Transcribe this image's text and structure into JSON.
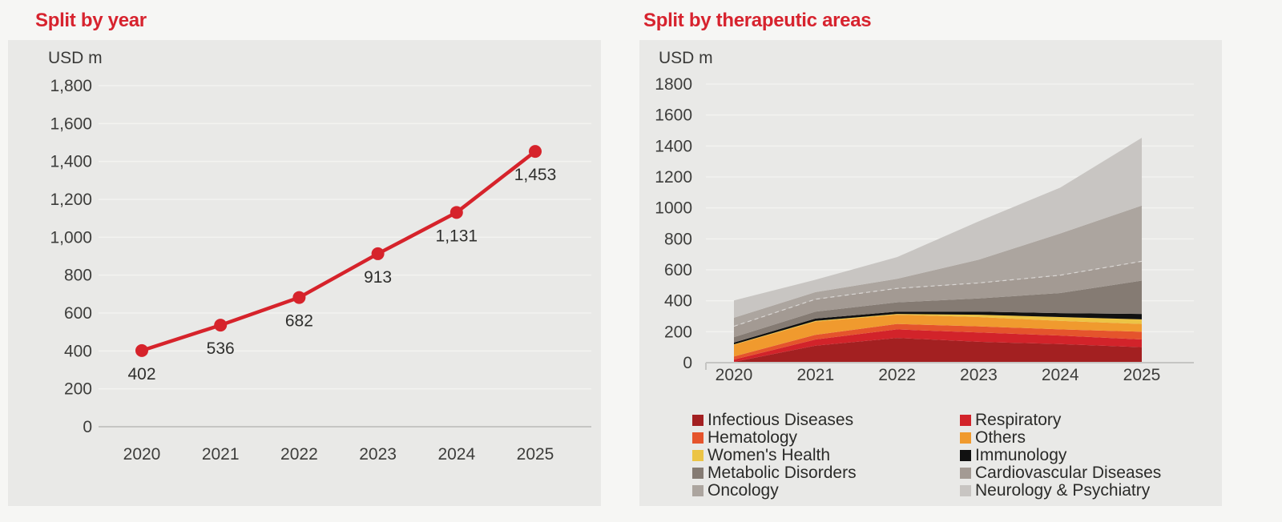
{
  "page": {
    "background": "#f6f6f4",
    "panel_background": "#e9e9e7",
    "accent_red": "#d7232e",
    "axis_text_color": "#3d3d3b",
    "gridline_color": "#f3f3f1",
    "zero_axis_color": "#c5c5c3"
  },
  "chart_data": [
    {
      "type": "line",
      "title": "Split by year",
      "unit": "USD m",
      "categories": [
        "2020",
        "2021",
        "2022",
        "2023",
        "2024",
        "2025"
      ],
      "values": [
        402,
        536,
        682,
        913,
        1131,
        1453
      ],
      "data_labels": [
        "402",
        "536",
        "682",
        "913",
        "1,131",
        "1,453"
      ],
      "ylim": [
        0,
        1800
      ],
      "ytick_step": 200,
      "ytick_labels": [
        "0",
        "200",
        "400",
        "600",
        "800",
        "1,000",
        "1,200",
        "1,400",
        "1,600",
        "1,800"
      ],
      "line_color": "#d6232b",
      "marker_color": "#d6232b",
      "grid": true,
      "legend_position": "none"
    },
    {
      "type": "area",
      "title": "Split by therapeutic areas",
      "unit": "USD m",
      "categories": [
        "2020",
        "2021",
        "2022",
        "2023",
        "2024",
        "2025"
      ],
      "ylim": [
        0,
        1800
      ],
      "ytick_step": 200,
      "ytick_labels": [
        "0",
        "200",
        "400",
        "600",
        "800",
        "1000",
        "1200",
        "1400",
        "1600",
        "1800"
      ],
      "stacked": true,
      "grid": true,
      "legend_position": "bottom-two-columns",
      "totals": [
        402,
        536,
        682,
        913,
        1131,
        1453
      ],
      "series": [
        {
          "name": "Infectious Diseases",
          "color": "#a32021",
          "values": [
            5,
            110,
            160,
            135,
            120,
            100
          ]
        },
        {
          "name": "Respiratory",
          "color": "#d2232a",
          "values": [
            15,
            40,
            55,
            60,
            55,
            50
          ]
        },
        {
          "name": "Hematology",
          "color": "#e5542c",
          "values": [
            20,
            30,
            35,
            40,
            40,
            50
          ]
        },
        {
          "name": "Others",
          "color": "#f09a2e",
          "values": [
            75,
            85,
            60,
            60,
            55,
            50
          ]
        },
        {
          "name": "Women's Health",
          "color": "#ecc445",
          "values": [
            3,
            5,
            5,
            15,
            25,
            30
          ]
        },
        {
          "name": "Immunology",
          "color": "#111111",
          "values": [
            12,
            15,
            15,
            20,
            25,
            35
          ]
        },
        {
          "name": "Metabolic Disorders",
          "color": "#857b73",
          "values": [
            35,
            45,
            60,
            85,
            130,
            215
          ]
        },
        {
          "name": "Cardiovascular Diseases",
          "color": "#a39a93",
          "values": [
            70,
            80,
            90,
            100,
            115,
            125
          ]
        },
        {
          "name": "Oncology",
          "color": "#aca59f",
          "values": [
            55,
            46,
            62,
            150,
            270,
            360
          ]
        },
        {
          "name": "Neurology & Psychiatry",
          "color": "#c8c5c2",
          "values": [
            112,
            80,
            140,
            248,
            296,
            438
          ]
        }
      ]
    }
  ]
}
